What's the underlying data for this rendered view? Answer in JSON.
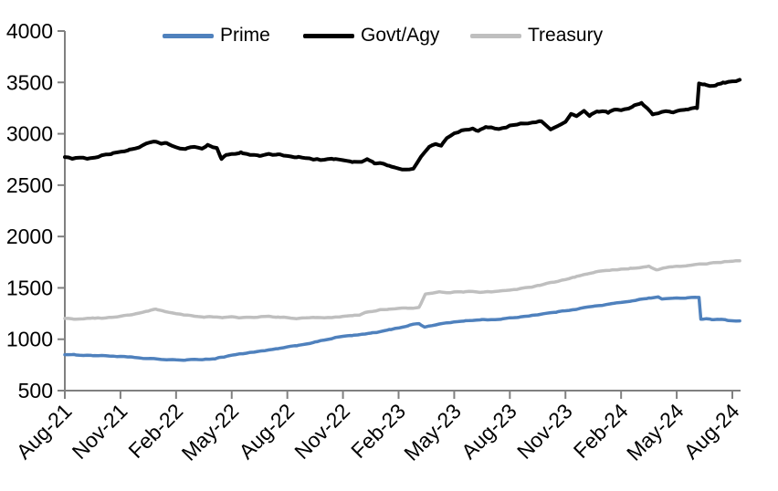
{
  "chart_data": {
    "type": "line",
    "legend": {
      "position": "top",
      "entries": [
        "Prime",
        "Govt/Agy",
        "Treasury"
      ]
    },
    "x_axis": {
      "tick_labels": [
        "Aug-21",
        "Nov-21",
        "Feb-22",
        "May-22",
        "Aug-22",
        "Nov-22",
        "Feb-23",
        "May-23",
        "Aug-23",
        "Nov-23",
        "Feb-24",
        "May-24",
        "Aug-24"
      ],
      "x_unit": "months_since_Aug-21",
      "range_months": [
        0,
        36.4
      ],
      "label_rotation_deg": -45
    },
    "y_axis": {
      "tick_labels": [
        "4000",
        "3500",
        "3000",
        "2500",
        "2000",
        "1500",
        "1000",
        "500"
      ],
      "min": 500,
      "max": 4000,
      "step": 500
    },
    "axis_color": "#808080",
    "grid": "off",
    "series": [
      {
        "name": "Prime",
        "color": "#4F81BD",
        "stroke_width": 3.5,
        "points": [
          [
            0,
            852
          ],
          [
            0.5,
            848
          ],
          [
            1,
            845
          ],
          [
            1.5,
            843
          ],
          [
            2,
            840
          ],
          [
            2.5,
            837
          ],
          [
            3,
            832
          ],
          [
            3.5,
            825
          ],
          [
            4,
            818
          ],
          [
            4.5,
            811
          ],
          [
            5,
            806
          ],
          [
            5.5,
            801
          ],
          [
            6,
            798
          ],
          [
            6.5,
            797
          ],
          [
            7,
            801
          ],
          [
            7.5,
            805
          ],
          [
            8.1,
            810
          ],
          [
            8.3,
            822
          ],
          [
            8.6,
            828
          ],
          [
            9,
            845
          ],
          [
            9.5,
            858
          ],
          [
            10,
            872
          ],
          [
            10.5,
            882
          ],
          [
            11,
            893
          ],
          [
            11.5,
            908
          ],
          [
            12,
            922
          ],
          [
            12.5,
            938
          ],
          [
            13,
            955
          ],
          [
            13.5,
            972
          ],
          [
            14,
            992
          ],
          [
            14.5,
            1012
          ],
          [
            15,
            1028
          ],
          [
            15.5,
            1036
          ],
          [
            16,
            1045
          ],
          [
            16.5,
            1058
          ],
          [
            17,
            1072
          ],
          [
            17.5,
            1092
          ],
          [
            18,
            1110
          ],
          [
            18.5,
            1132
          ],
          [
            18.8,
            1148
          ],
          [
            19.1,
            1152
          ],
          [
            19.4,
            1120
          ],
          [
            19.8,
            1132
          ],
          [
            20.2,
            1148
          ],
          [
            20.6,
            1160
          ],
          [
            21,
            1168
          ],
          [
            21.5,
            1176
          ],
          [
            22,
            1184
          ],
          [
            22.5,
            1192
          ],
          [
            23,
            1190
          ],
          [
            23.5,
            1196
          ],
          [
            24,
            1205
          ],
          [
            24.5,
            1216
          ],
          [
            25,
            1228
          ],
          [
            25.5,
            1240
          ],
          [
            26,
            1252
          ],
          [
            26.5,
            1264
          ],
          [
            27,
            1278
          ],
          [
            27.5,
            1292
          ],
          [
            28,
            1308
          ],
          [
            28.5,
            1320
          ],
          [
            29,
            1332
          ],
          [
            29.5,
            1345
          ],
          [
            30,
            1358
          ],
          [
            30.5,
            1372
          ],
          [
            31,
            1388
          ],
          [
            31.5,
            1400
          ],
          [
            32,
            1412
          ],
          [
            32.2,
            1390
          ],
          [
            32.6,
            1396
          ],
          [
            33,
            1402
          ],
          [
            33.5,
            1400
          ],
          [
            34,
            1405
          ],
          [
            34.2,
            1408
          ],
          [
            34.3,
            1196
          ],
          [
            34.6,
            1202
          ],
          [
            34.9,
            1192
          ],
          [
            35.3,
            1196
          ],
          [
            35.7,
            1186
          ],
          [
            36,
            1182
          ],
          [
            36.4,
            1178
          ]
        ]
      },
      {
        "name": "Govt/Agy",
        "color": "#000000",
        "stroke_width": 4,
        "points": [
          [
            0,
            2778
          ],
          [
            0.4,
            2762
          ],
          [
            0.8,
            2775
          ],
          [
            1.2,
            2758
          ],
          [
            1.6,
            2772
          ],
          [
            2,
            2790
          ],
          [
            2.5,
            2802
          ],
          [
            3,
            2828
          ],
          [
            3.5,
            2848
          ],
          [
            4,
            2872
          ],
          [
            4.4,
            2900
          ],
          [
            4.9,
            2928
          ],
          [
            5.2,
            2898
          ],
          [
            5.5,
            2912
          ],
          [
            6,
            2872
          ],
          [
            6.5,
            2852
          ],
          [
            7,
            2868
          ],
          [
            7.4,
            2846
          ],
          [
            7.7,
            2888
          ],
          [
            8,
            2862
          ],
          [
            8.2,
            2855
          ],
          [
            8.45,
            2752
          ],
          [
            8.7,
            2790
          ],
          [
            9,
            2798
          ],
          [
            9.5,
            2815
          ],
          [
            10,
            2800
          ],
          [
            10.5,
            2788
          ],
          [
            11,
            2808
          ],
          [
            11.5,
            2795
          ],
          [
            12,
            2782
          ],
          [
            12.5,
            2772
          ],
          [
            13,
            2765
          ],
          [
            13.5,
            2748
          ],
          [
            14,
            2742
          ],
          [
            14.5,
            2755
          ],
          [
            15,
            2745
          ],
          [
            15.5,
            2728
          ],
          [
            16,
            2722
          ],
          [
            16.3,
            2748
          ],
          [
            16.7,
            2716
          ],
          [
            17,
            2712
          ],
          [
            17.5,
            2690
          ],
          [
            18,
            2668
          ],
          [
            18.4,
            2652
          ],
          [
            18.8,
            2658
          ],
          [
            19.2,
            2775
          ],
          [
            19.65,
            2872
          ],
          [
            20,
            2895
          ],
          [
            20.3,
            2882
          ],
          [
            20.6,
            2958
          ],
          [
            21,
            3000
          ],
          [
            21.6,
            3042
          ],
          [
            22,
            3052
          ],
          [
            22.3,
            3030
          ],
          [
            22.7,
            3058
          ],
          [
            23,
            3055
          ],
          [
            23.4,
            3040
          ],
          [
            23.7,
            3062
          ],
          [
            24,
            3078
          ],
          [
            24.5,
            3095
          ],
          [
            25,
            3105
          ],
          [
            25.7,
            3122
          ],
          [
            26.2,
            3035
          ],
          [
            26.6,
            3075
          ],
          [
            27,
            3120
          ],
          [
            27.3,
            3190
          ],
          [
            27.6,
            3172
          ],
          [
            28,
            3225
          ],
          [
            28.3,
            3180
          ],
          [
            28.7,
            3215
          ],
          [
            29,
            3222
          ],
          [
            29.3,
            3205
          ],
          [
            29.7,
            3238
          ],
          [
            30,
            3225
          ],
          [
            30.4,
            3248
          ],
          [
            30.7,
            3272
          ],
          [
            31.1,
            3298
          ],
          [
            31.4,
            3252
          ],
          [
            31.7,
            3195
          ],
          [
            32,
            3205
          ],
          [
            32.4,
            3222
          ],
          [
            32.7,
            3210
          ],
          [
            33,
            3218
          ],
          [
            33.5,
            3232
          ],
          [
            34.1,
            3250
          ],
          [
            34.2,
            3490
          ],
          [
            34.5,
            3480
          ],
          [
            34.8,
            3458
          ],
          [
            35.1,
            3472
          ],
          [
            35.5,
            3495
          ],
          [
            36,
            3512
          ],
          [
            36.4,
            3525
          ]
        ]
      },
      {
        "name": "Treasury",
        "color": "#BFBFBF",
        "stroke_width": 3.5,
        "points": [
          [
            0,
            1205
          ],
          [
            0.5,
            1196
          ],
          [
            1,
            1202
          ],
          [
            1.5,
            1210
          ],
          [
            2,
            1206
          ],
          [
            2.5,
            1214
          ],
          [
            3,
            1222
          ],
          [
            3.5,
            1236
          ],
          [
            4,
            1255
          ],
          [
            4.5,
            1275
          ],
          [
            4.9,
            1292
          ],
          [
            5.3,
            1272
          ],
          [
            5.8,
            1255
          ],
          [
            6.3,
            1240
          ],
          [
            7,
            1226
          ],
          [
            7.5,
            1218
          ],
          [
            8,
            1220
          ],
          [
            8.5,
            1212
          ],
          [
            9,
            1216
          ],
          [
            9.5,
            1207
          ],
          [
            10,
            1212
          ],
          [
            10.5,
            1216
          ],
          [
            11,
            1220
          ],
          [
            11.5,
            1214
          ],
          [
            12,
            1212
          ],
          [
            12.5,
            1203
          ],
          [
            13,
            1206
          ],
          [
            13.5,
            1210
          ],
          [
            14,
            1208
          ],
          [
            14.5,
            1214
          ],
          [
            15,
            1222
          ],
          [
            15.5,
            1230
          ],
          [
            15.9,
            1238
          ],
          [
            16.2,
            1262
          ],
          [
            16.6,
            1272
          ],
          [
            17,
            1288
          ],
          [
            17.5,
            1295
          ],
          [
            18,
            1300
          ],
          [
            18.5,
            1303
          ],
          [
            19.1,
            1308
          ],
          [
            19.45,
            1442
          ],
          [
            19.8,
            1452
          ],
          [
            20.2,
            1460
          ],
          [
            20.6,
            1450
          ],
          [
            21,
            1457
          ],
          [
            21.5,
            1462
          ],
          [
            22,
            1464
          ],
          [
            22.4,
            1452
          ],
          [
            22.8,
            1460
          ],
          [
            23.2,
            1462
          ],
          [
            23.6,
            1470
          ],
          [
            24,
            1478
          ],
          [
            24.5,
            1490
          ],
          [
            25,
            1502
          ],
          [
            25.5,
            1520
          ],
          [
            26,
            1542
          ],
          [
            26.6,
            1566
          ],
          [
            27,
            1580
          ],
          [
            27.5,
            1605
          ],
          [
            28,
            1628
          ],
          [
            28.5,
            1648
          ],
          [
            29,
            1664
          ],
          [
            29.5,
            1672
          ],
          [
            30,
            1681
          ],
          [
            30.5,
            1690
          ],
          [
            31,
            1699
          ],
          [
            31.5,
            1710
          ],
          [
            31.9,
            1672
          ],
          [
            32.3,
            1697
          ],
          [
            33,
            1708
          ],
          [
            33.5,
            1712
          ],
          [
            34,
            1726
          ],
          [
            34.5,
            1733
          ],
          [
            35,
            1744
          ],
          [
            35.5,
            1752
          ],
          [
            36,
            1761
          ],
          [
            36.4,
            1766
          ]
        ]
      }
    ]
  }
}
